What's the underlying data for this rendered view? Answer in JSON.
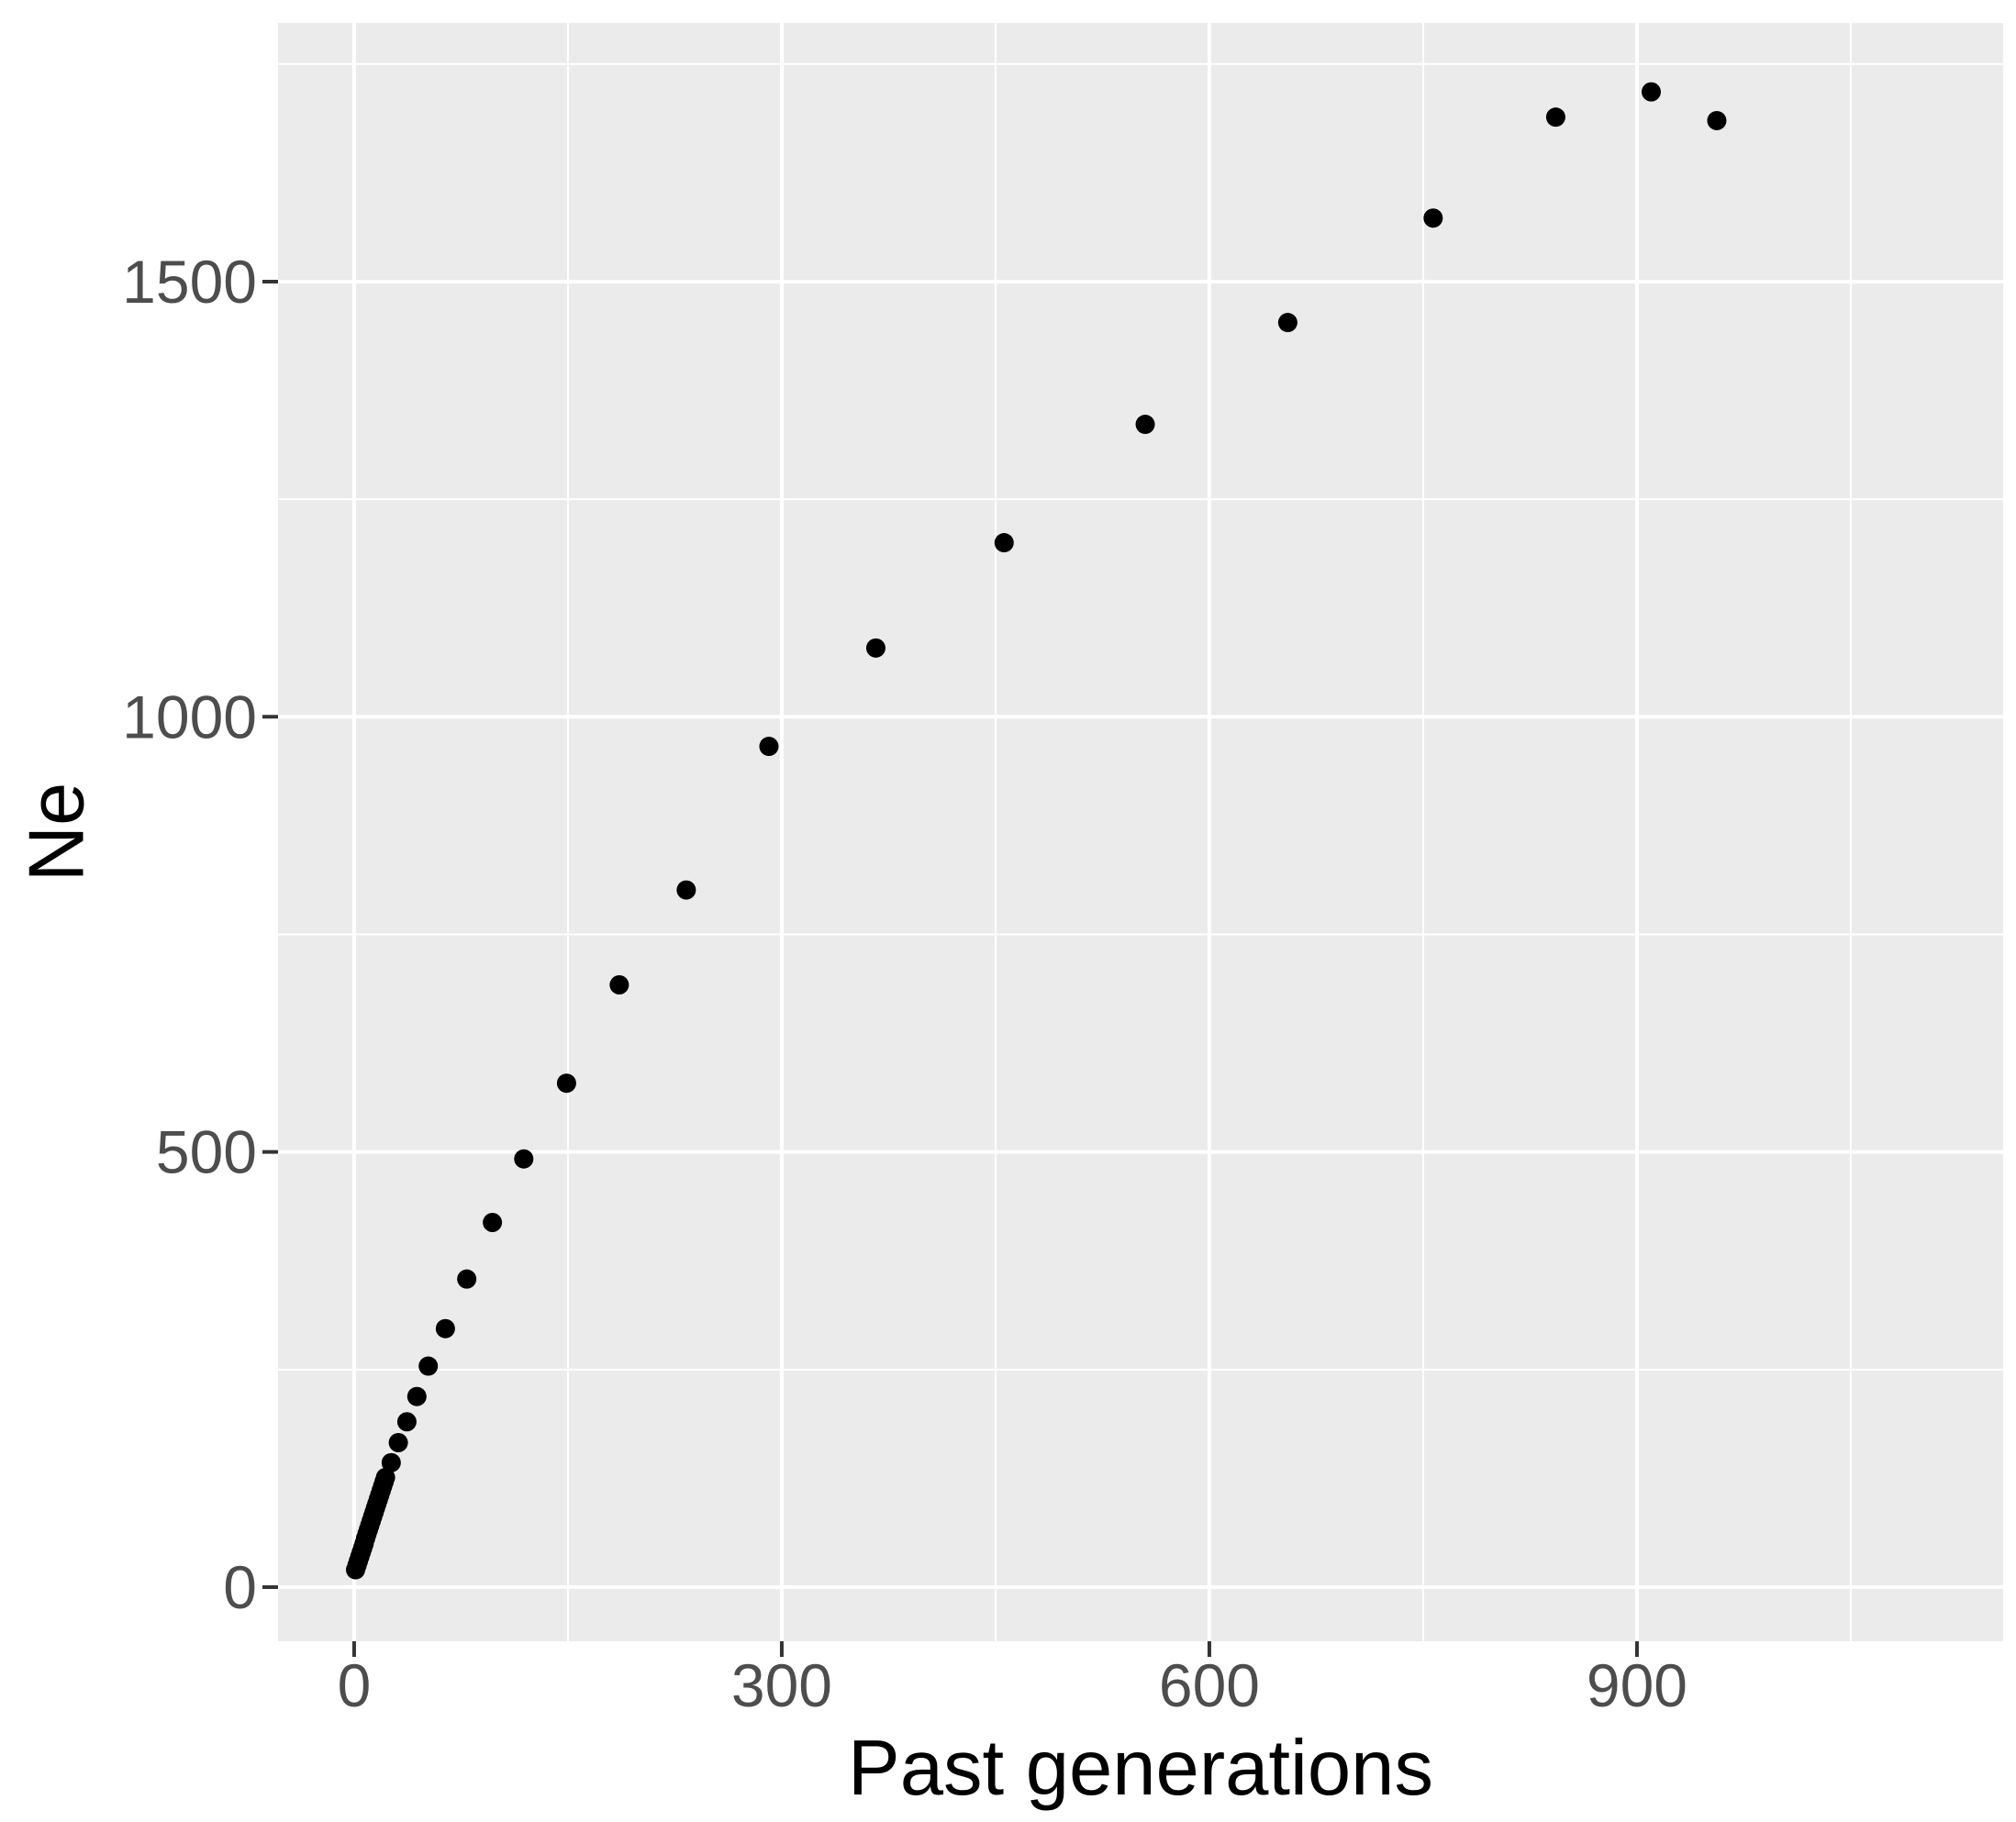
{
  "figure": {
    "xlabel": "Past generations",
    "ylabel": "Ne"
  },
  "chart_data": {
    "type": "scatter",
    "title": "",
    "xlabel": "Past generations",
    "ylabel": "Ne",
    "xlim": [
      -53.4,
      1156.9
    ],
    "ylim": [
      -62.2,
      1797.2
    ],
    "x_major_ticks": [
      0,
      300,
      600,
      900
    ],
    "x_minor_gridlines": [
      150,
      450,
      750,
      1050
    ],
    "y_major_ticks": [
      0,
      500,
      1000,
      1500
    ],
    "y_minor_gridlines": [
      250,
      750,
      1250,
      1750
    ],
    "grid": "major+minor on, white on gray panel",
    "legend": "none",
    "colors": {
      "point": "#000000",
      "panel_background": "#ebebeb",
      "gridline": "#ffffff",
      "tick_mark": "#333333",
      "tick_label": "#4d4d4d",
      "axis_title": "#000000",
      "figure_background": "#ffffff"
    },
    "points": [
      [
        1,
        20
      ],
      [
        2,
        25
      ],
      [
        3,
        30
      ],
      [
        4,
        35
      ],
      [
        5,
        40
      ],
      [
        6,
        45
      ],
      [
        7,
        50
      ],
      [
        8,
        56
      ],
      [
        9,
        61
      ],
      [
        10,
        66
      ],
      [
        11,
        71
      ],
      [
        12,
        76
      ],
      [
        13,
        81
      ],
      [
        14,
        86
      ],
      [
        15,
        91
      ],
      [
        16,
        96
      ],
      [
        17,
        101
      ],
      [
        18,
        106
      ],
      [
        19,
        111
      ],
      [
        20,
        116
      ],
      [
        21,
        121
      ],
      [
        22,
        126
      ],
      [
        26,
        143
      ],
      [
        31,
        166
      ],
      [
        37,
        190
      ],
      [
        44,
        219
      ],
      [
        52,
        254
      ],
      [
        64,
        297
      ],
      [
        79,
        354
      ],
      [
        97,
        419
      ],
      [
        119,
        492
      ],
      [
        149,
        579
      ],
      [
        186,
        692
      ],
      [
        233,
        801
      ],
      [
        291,
        966
      ],
      [
        366,
        1079
      ],
      [
        456,
        1200
      ],
      [
        555,
        1336
      ],
      [
        655,
        1453
      ],
      [
        757,
        1573
      ],
      [
        843,
        1689
      ],
      [
        910,
        1718
      ],
      [
        956,
        1685
      ]
    ]
  }
}
